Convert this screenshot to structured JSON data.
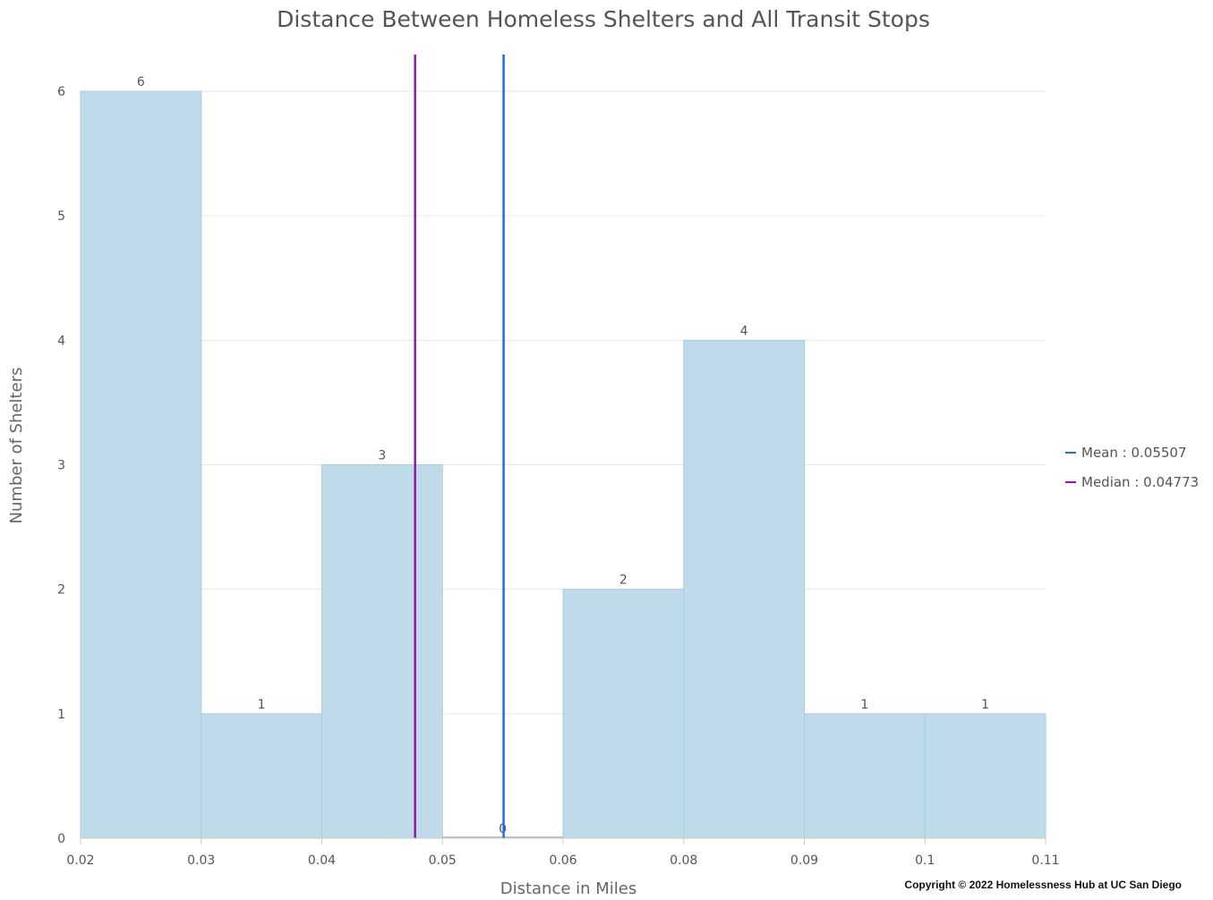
{
  "chart_data": {
    "type": "bar",
    "title": "Distance Between Homeless Shelters and All Transit Stops",
    "xlabel": "Distance in Miles",
    "ylabel": "Number of Shelters",
    "bin_edges": [
      "0.02",
      "0.03",
      "0.04",
      "0.05",
      "0.06",
      "0.08",
      "0.09",
      "0.1",
      "0.11"
    ],
    "values": [
      6,
      1,
      3,
      0,
      2,
      4,
      1,
      1
    ],
    "ylim": [
      0,
      6
    ],
    "yticks": [
      0,
      1,
      2,
      3,
      4,
      5,
      6
    ],
    "grid": true,
    "legend_position": "right",
    "reference_lines": [
      {
        "name": "Mean",
        "label": "Mean : 0.05507",
        "value": 0.05507,
        "color": "#1f6fe0"
      },
      {
        "name": "Median",
        "label": "Median : 0.04773",
        "value": 0.04773,
        "color": "#8e1aa6"
      }
    ],
    "colors": {
      "bar_fill": "#bfdbe9",
      "bar_stroke": "#a8cde0",
      "grid": "#e6e6e6",
      "axis": "#cccccc"
    }
  },
  "footer": {
    "copyright": "Copyright © 2022 Homelessness Hub at UC San Diego"
  }
}
